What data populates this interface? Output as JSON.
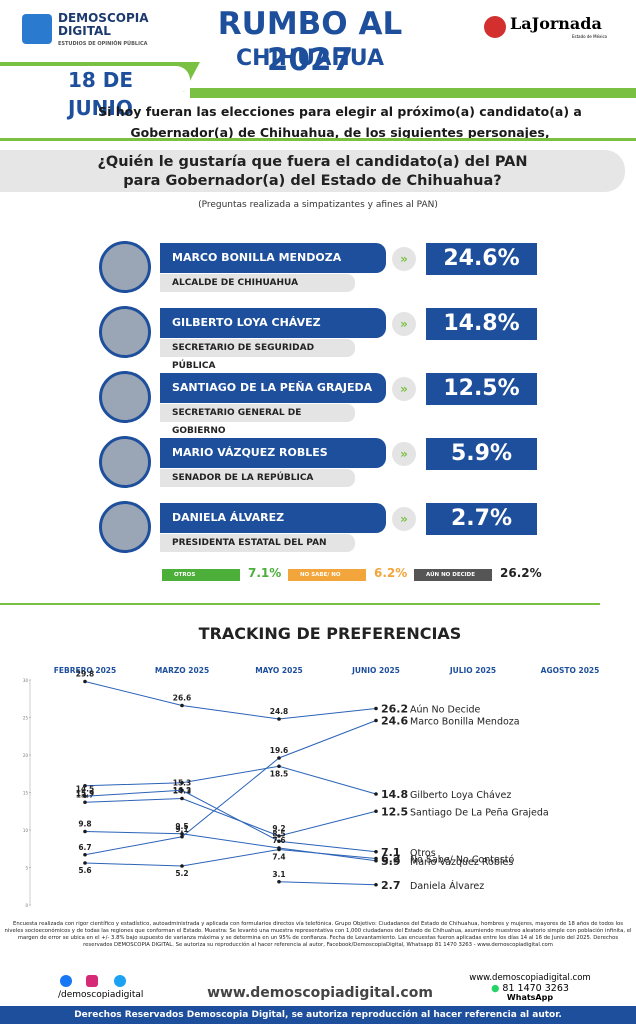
{
  "header": {
    "brand": "DEMOSCOPIA",
    "brand2": "DIGITAL",
    "brand_tagline": "ESTUDIOS DE OPINIÓN PÚBLICA",
    "title": "RUMBO AL 2027",
    "subtitle": "CHIHUAHUA",
    "date": "18 DE JUNIO",
    "partner": "LaJornada",
    "partner_tagline": "Estado de México"
  },
  "intro": [
    "Si hoy fueran las elecciones para elegir al próximo(a) candidato(a) a",
    "Gobernador(a) de Chihuahua, de los siguientes personajes,"
  ],
  "question": [
    "¿Quién le gustaría que fuera el candidato(a) del PAN",
    "para Gobernador(a) del Estado de Chihuahua?"
  ],
  "note": "(Preguntas realizada a simpatizantes y afines al PAN)",
  "candidates": [
    {
      "name": "MARCO BONILLA MENDOZA",
      "role": "ALCALDE DE CHIHUAHUA",
      "result": "24.6%"
    },
    {
      "name": "GILBERTO LOYA CHÁVEZ",
      "role": "SECRETARIO DE SEGURIDAD PÚBLICA",
      "result": "14.8%"
    },
    {
      "name": "SANTIAGO DE LA PEÑA GRAJEDA",
      "role": "SECRETARIO GENERAL DE GOBIERNO",
      "result": "12.5%"
    },
    {
      "name": "MARIO VÁZQUEZ ROBLES",
      "role": "SENADOR DE LA REPÚBLICA",
      "result": "5.9%"
    },
    {
      "name": "DANIELA ÁLVAREZ",
      "role": "PRESIDENTA ESTATAL DEL PAN",
      "result": "2.7%"
    }
  ],
  "others": [
    {
      "label": "OTROS",
      "result": "7.1%",
      "color": "#4caf3a"
    },
    {
      "label": "NO SABE/ NO CONTESTÓ",
      "result": "6.2%",
      "color": "#f2a53a"
    },
    {
      "label": "AÚN NO DECIDE",
      "result": "26.2%",
      "color": "#555555"
    }
  ],
  "chart_data": {
    "type": "line",
    "title": "TRACKING DE PREFERENCIAS",
    "categories": [
      "FEBRERO 2025",
      "MARZO 2025",
      "MAYO 2025",
      "JUNIO 2025",
      "JULIO 2025",
      "AGOSTO 2025"
    ],
    "ylim": [
      0,
      30
    ],
    "yticks": [
      0,
      5,
      10,
      15,
      20,
      25,
      30
    ],
    "series": [
      {
        "name": "Aún No Decide",
        "color": "#2b63b8",
        "values": [
          29.8,
          26.6,
          24.8,
          26.2,
          null,
          null
        ]
      },
      {
        "name": "Marco Bonilla Mendoza",
        "color": "#2b63b8",
        "values": [
          6.7,
          9.1,
          19.6,
          24.6,
          null,
          null
        ]
      },
      {
        "name": "Gilberto Loya Chávez",
        "color": "#2b63b8",
        "values": [
          15.9,
          16.3,
          18.5,
          14.8,
          null,
          null
        ]
      },
      {
        "name": "Santiago De La Peña Grajeda",
        "color": "#2b63b8",
        "values": [
          13.7,
          14.2,
          9.2,
          12.5,
          null,
          null
        ]
      },
      {
        "name": "Otros",
        "color": "#2b63b8",
        "values": [
          14.5,
          15.3,
          8.5,
          7.1,
          null,
          null
        ]
      },
      {
        "name": "No Sabe/ No Contestó",
        "color": "#2b63b8",
        "values": [
          5.6,
          5.2,
          7.4,
          6.2,
          null,
          null
        ]
      },
      {
        "name": "Mario Vázquez Robles",
        "color": "#2b63b8",
        "values": [
          9.8,
          9.5,
          7.6,
          5.9,
          null,
          null
        ]
      },
      {
        "name": "Daniela Álvarez",
        "color": "#2b63b8",
        "values": [
          null,
          null,
          3.1,
          2.7,
          null,
          null
        ]
      }
    ]
  },
  "footer": {
    "method": "Encuesta realizada con rigor científico y estadístico, autoadministrada y aplicada con formularios directos vía telefónica. Grupo Objetivo: Ciudadanos del Estado de Chihuahua, hombres y mujeres, mayores de 18 años de todos los niveles socioeconómicos y de todas las regiones que conforman el Estado. Muestra: Se levantó una muestra representativa con 1,000 ciudadanos del Estado de Chihuahua, asumiendo muestreo aleatorio simple con población infinita, el margen de error se ubica en el +/- 3.8% bajo supuesto de varianza máxima y se determina en un 95% de confianza. Fecha de Levantamiento. Las encuestas fueron aplicadas entre los días 14 al 16 de Junio del 2025. Derechos reservados DEMOSCOPIA DIGITAL. Se autoriza su reproducción al hacer referencia al autor, Facebook/DemoscopiaDigital, Whatsapp 81 1470 3263 - www.demoscopiadigital.com",
    "social": "/demoscopiadigital",
    "website": "www.demoscopiadigital.com",
    "site_small": "www.demoscopiadigital.com",
    "phone": "81 1470 3263",
    "phone_label": "WhatsApp",
    "rights": "Derechos Reservados Demoscopia Digital, se autoriza reproducción al hacer referencia al autor."
  }
}
